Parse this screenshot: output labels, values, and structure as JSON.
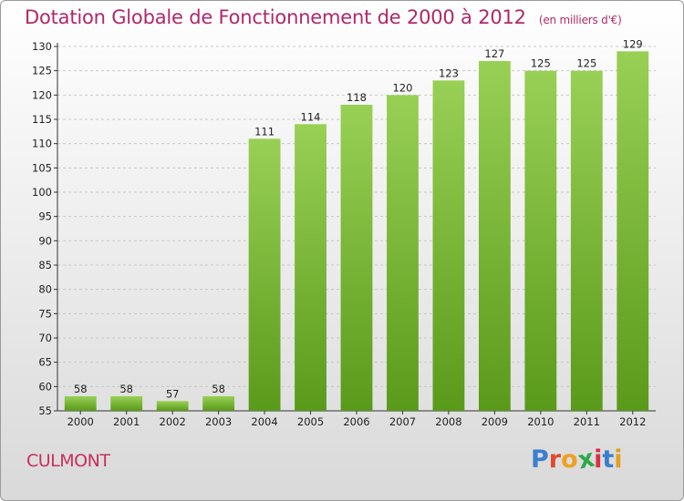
{
  "header": {
    "title": "Dotation Globale de Fonctionnement de 2000 à 2012",
    "unit": "(en milliers d'€)"
  },
  "footer": {
    "commune": "CULMONT",
    "brand": "Proxiti",
    "brand_colors": [
      "#3a7fd0",
      "#e04a2a",
      "#f0a020",
      "#2fa84a",
      "#d8304a",
      "#3a7fd0",
      "#e0a020"
    ]
  },
  "colors": {
    "bar_top": "#98d055",
    "bar_bottom": "#5a9a1a",
    "title": "#b0286c",
    "commune": "#c8305c"
  },
  "chart_data": {
    "type": "bar",
    "title": "Dotation Globale de Fonctionnement de 2000 à 2012",
    "subtitle": "(en milliers d'€)",
    "categories": [
      "2000",
      "2001",
      "2002",
      "2003",
      "2004",
      "2005",
      "2006",
      "2007",
      "2008",
      "2009",
      "2010",
      "2011",
      "2012"
    ],
    "values": [
      58,
      58,
      57,
      58,
      111,
      114,
      118,
      120,
      123,
      127,
      125,
      125,
      129
    ],
    "ylim": [
      55,
      130
    ],
    "yticks": [
      55,
      60,
      65,
      70,
      75,
      80,
      85,
      90,
      95,
      100,
      105,
      110,
      115,
      120,
      125,
      130
    ],
    "grid": true,
    "xlabel": "",
    "ylabel": ""
  }
}
